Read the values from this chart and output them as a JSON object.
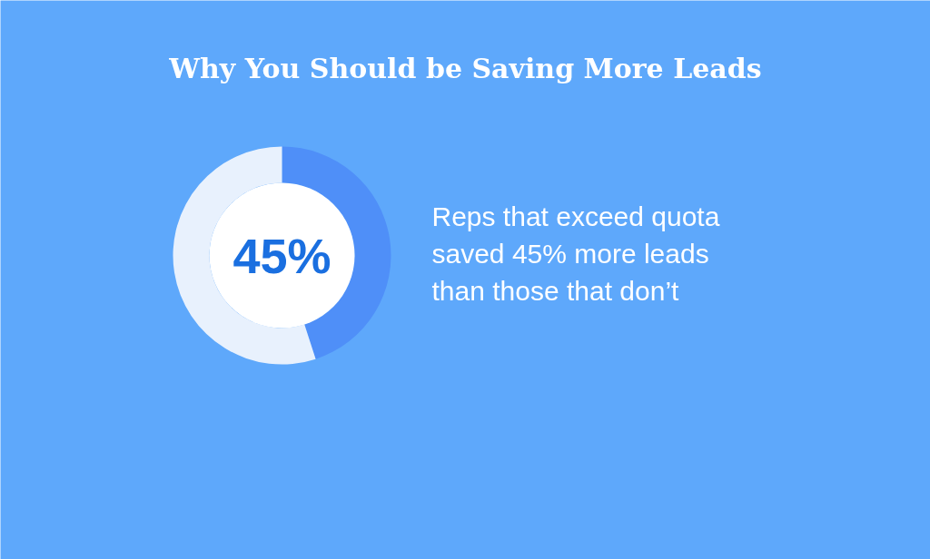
{
  "chart_data": {
    "type": "donut",
    "title": "Why You Should be Saving More Leads",
    "categories": [
      null,
      null
    ],
    "values": [
      45,
      55
    ],
    "colors": [
      "#4f8ff8",
      "#e8f1fd"
    ],
    "value_labels": [
      "45%",
      null
    ],
    "annotations": [
      "Reps that exceed quota saved 45% more leads than those that don’t"
    ]
  }
}
